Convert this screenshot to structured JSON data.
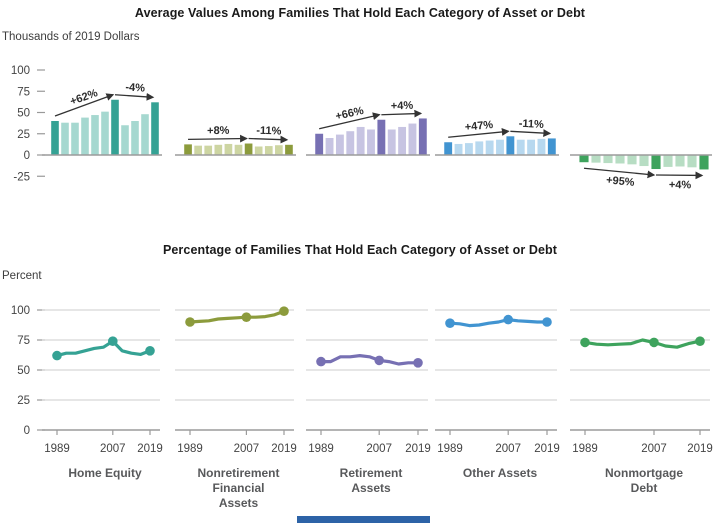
{
  "chart_data": [
    {
      "type": "bar",
      "title": "Average Values Among Families That Hold Each Category of Asset or Debt",
      "ylabel": "Thousands of 2019 Dollars",
      "ylim": [
        -25,
        100
      ],
      "yticks": [
        100,
        75,
        50,
        25,
        0,
        -25
      ],
      "grid": false,
      "x": [
        1989,
        1992,
        1995,
        1998,
        2001,
        2004,
        2007,
        2010,
        2013,
        2016,
        2019
      ],
      "highlight_x": [
        1989,
        2007,
        2019
      ],
      "series": [
        {
          "name": "Home Equity",
          "color": "#35a294",
          "color_light": "#a6d8d0",
          "values": [
            40,
            38,
            38,
            44,
            47,
            51,
            65,
            35,
            40,
            48,
            62
          ],
          "annotations": [
            {
              "text": "+62%",
              "from_year": 1989,
              "to_year": 2007
            },
            {
              "text": "-4%",
              "from_year": 2007,
              "to_year": 2019
            }
          ]
        },
        {
          "name": "Nonretirement Financial Assets",
          "color": "#8c9b3c",
          "color_light": "#cdd5a2",
          "values": [
            12.5,
            11,
            11,
            12,
            13,
            12,
            13.5,
            10,
            10.5,
            11.5,
            12
          ],
          "annotations": [
            {
              "text": "+8%",
              "from_year": 1989,
              "to_year": 2007
            },
            {
              "text": "-11%",
              "from_year": 2007,
              "to_year": 2019
            }
          ]
        },
        {
          "name": "Retirement Assets",
          "color": "#7770b3",
          "color_light": "#c7c4e2",
          "values": [
            25,
            20,
            24,
            28,
            33,
            30,
            41.5,
            30,
            33,
            37,
            43
          ],
          "annotations": [
            {
              "text": "+66%",
              "from_year": 1989,
              "to_year": 2007
            },
            {
              "text": "+4%",
              "from_year": 2007,
              "to_year": 2019
            }
          ]
        },
        {
          "name": "Other Assets",
          "color": "#4194d1",
          "color_light": "#b7d8ef",
          "values": [
            15,
            13,
            14,
            16,
            17,
            18,
            22,
            18,
            18,
            19,
            19.5
          ],
          "annotations": [
            {
              "text": "+47%",
              "from_year": 1989,
              "to_year": 2007
            },
            {
              "text": "-11%",
              "from_year": 2007,
              "to_year": 2019
            }
          ]
        },
        {
          "name": "Nonmortgage Debt",
          "color": "#3ea35d",
          "color_light": "#b7ddc3",
          "values": [
            -8.5,
            -9,
            -9.5,
            -10,
            -11,
            -13,
            -16.5,
            -14,
            -13.5,
            -14.5,
            -17
          ],
          "annotations": [
            {
              "text": "+95%",
              "from_year": 1989,
              "to_year": 2007
            },
            {
              "text": "+4%",
              "from_year": 2007,
              "to_year": 2019
            }
          ]
        }
      ]
    },
    {
      "type": "line",
      "title": "Percentage of Families That Hold Each Category of Asset or Debt",
      "ylabel": "Percent",
      "ylim": [
        0,
        100
      ],
      "yticks": [
        100,
        75,
        50,
        25,
        0
      ],
      "xticks": [
        1989,
        2007,
        2019
      ],
      "grid": true,
      "x": [
        1989,
        1992,
        1995,
        1998,
        2001,
        2004,
        2007,
        2010,
        2013,
        2016,
        2019
      ],
      "marker_x": [
        1989,
        2007,
        2019
      ],
      "series": [
        {
          "name": "Home Equity",
          "color": "#35a294",
          "values": [
            62,
            64,
            64,
            66,
            68,
            69,
            74,
            66,
            64,
            63,
            66
          ]
        },
        {
          "name": "Nonretirement Financial Assets",
          "color": "#8c9b3c",
          "values": [
            90,
            90.5,
            91,
            92.5,
            93,
            93.5,
            94,
            94,
            94.5,
            96,
            99
          ]
        },
        {
          "name": "Retirement Assets",
          "color": "#7770b3",
          "values": [
            57,
            57,
            61,
            61,
            62,
            61,
            58,
            57,
            55,
            56,
            56
          ]
        },
        {
          "name": "Other Assets",
          "color": "#4194d1",
          "values": [
            89,
            88.5,
            87,
            87.5,
            89,
            90,
            92,
            91,
            90.5,
            90,
            90
          ]
        },
        {
          "name": "Nonmortgage Debt",
          "color": "#3ea35d",
          "values": [
            73,
            71.5,
            71,
            71.5,
            72,
            75,
            73,
            70,
            69,
            72,
            74
          ]
        }
      ]
    }
  ],
  "categories": [
    {
      "name": "Home Equity",
      "label_lines": [
        "Home Equity"
      ]
    },
    {
      "name": "Nonretirement Financial Assets",
      "label_lines": [
        "Nonretirement",
        "Financial",
        "Assets"
      ]
    },
    {
      "name": "Retirement Assets",
      "label_lines": [
        "Retirement",
        "Assets"
      ]
    },
    {
      "name": "Other Assets",
      "label_lines": [
        "Other Assets"
      ]
    },
    {
      "name": "Nonmortgage Debt",
      "label_lines": [
        "Nonmortgage",
        "Debt"
      ]
    }
  ],
  "footer": {
    "accent_bar_color": "#2d63a7"
  }
}
